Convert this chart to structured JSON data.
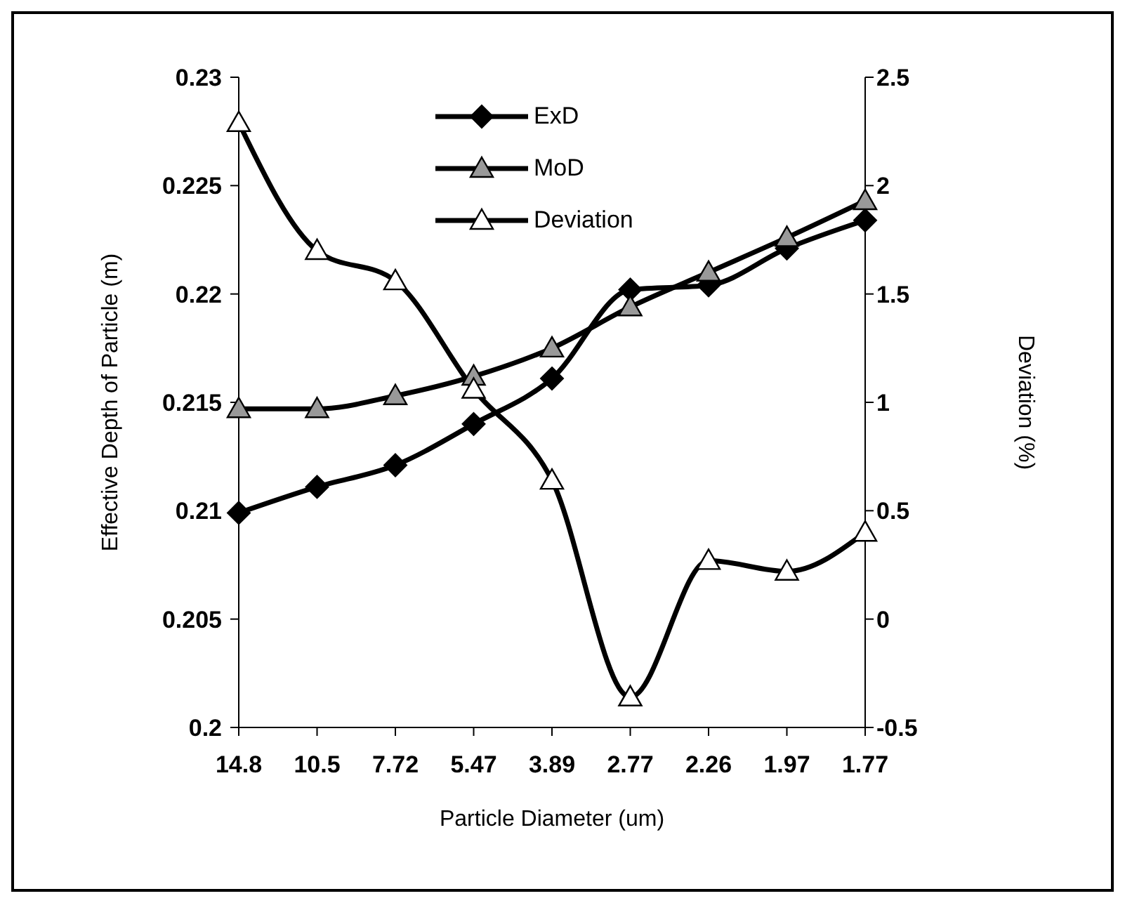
{
  "chart_data": {
    "type": "line",
    "xlabel": "Particle Diameter (um)",
    "ylabel": "Effective Depth of Particle (m)",
    "y2label": "Deviation (%)",
    "categories": [
      "14.8",
      "10.5",
      "7.72",
      "5.47",
      "3.89",
      "2.77",
      "2.26",
      "1.97",
      "1.77"
    ],
    "series": [
      {
        "name": "ExD",
        "color": "#000000",
        "marker": "diamond",
        "values": [
          0.2099,
          0.2111,
          0.2121,
          0.214,
          0.2161,
          0.2202,
          0.2204,
          0.2221,
          0.2234
        ]
      },
      {
        "name": "MoD",
        "color": "#999999",
        "marker": "triangle",
        "values": [
          0.2147,
          0.2147,
          0.2153,
          0.2162,
          0.2175,
          0.2194,
          0.221,
          0.2226,
          0.2243
        ]
      },
      {
        "name": "Deviation",
        "color": "#ffffff",
        "marker": "triangle",
        "axis": "y2",
        "values": [
          2.29,
          1.7,
          1.56,
          1.06,
          0.64,
          -0.36,
          0.27,
          0.22,
          0.4
        ]
      }
    ],
    "ylim": [
      0.2,
      0.23
    ],
    "yticks": [
      0.2,
      0.205,
      0.21,
      0.215,
      0.22,
      0.225,
      0.23
    ],
    "y2lim": [
      -0.5,
      2.5
    ],
    "y2ticks": [
      -0.5,
      0,
      0.5,
      1,
      1.5,
      2,
      2.5
    ],
    "grid": false,
    "legend": "top",
    "line_style": "solid"
  }
}
